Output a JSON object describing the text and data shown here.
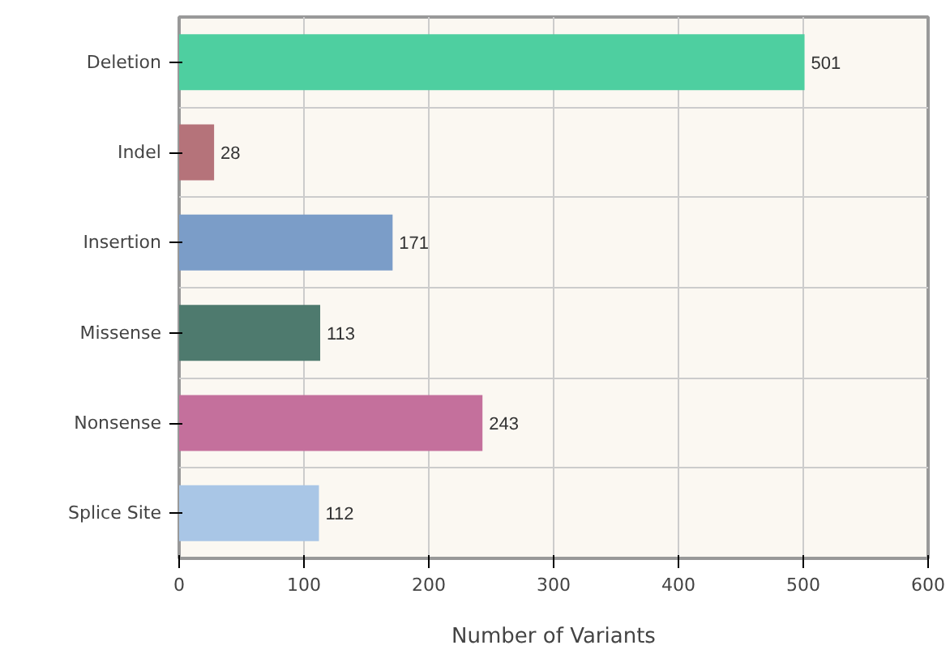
{
  "chart_data": {
    "type": "bar",
    "orientation": "horizontal",
    "xlabel": "Number of Variants",
    "categories": [
      "Deletion",
      "Indel",
      "Insertion",
      "Missense",
      "Nonsense",
      "Splice Site"
    ],
    "values": [
      501,
      28,
      171,
      113,
      243,
      112
    ],
    "colors": [
      "#4ecfa0",
      "#b5737a",
      "#7b9dc8",
      "#4e7a6e",
      "#c4709c",
      "#a9c6e6"
    ],
    "xlim": [
      0,
      600
    ],
    "xticks": [
      0,
      100,
      200,
      300,
      400,
      500,
      600
    ],
    "grid": true,
    "data_labels": true
  }
}
